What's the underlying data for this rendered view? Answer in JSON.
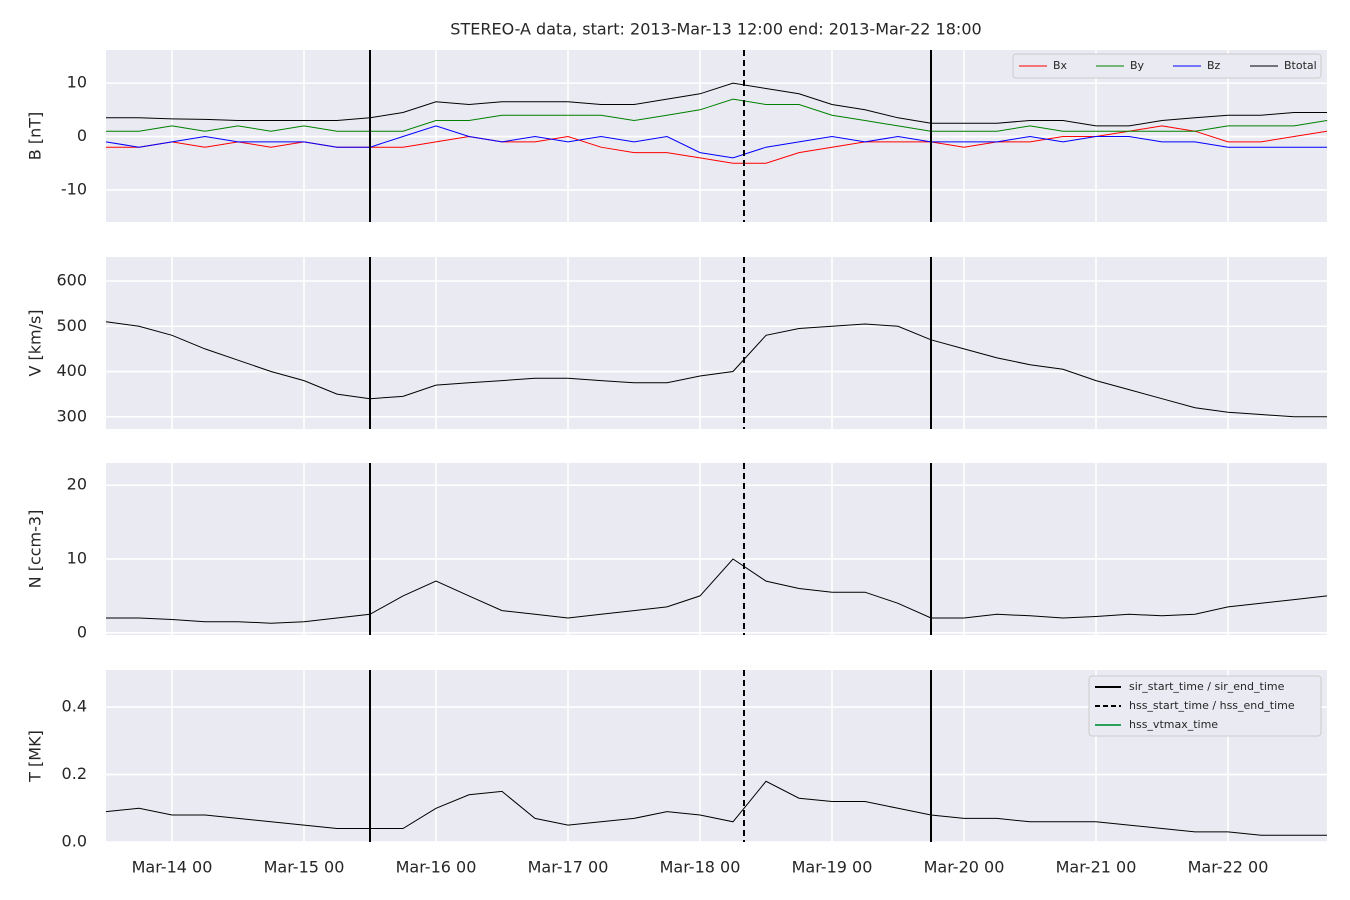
{
  "title": "STEREO-A data, start: 2013-Mar-13 12:00  end: 2013-Mar-22 18:00",
  "x": [
    "Mar-13 12",
    "Mar-13 18",
    "Mar-14 00",
    "Mar-14 06",
    "Mar-14 12",
    "Mar-14 18",
    "Mar-15 00",
    "Mar-15 06",
    "Mar-15 12",
    "Mar-15 18",
    "Mar-16 00",
    "Mar-16 06",
    "Mar-16 12",
    "Mar-16 18",
    "Mar-17 00",
    "Mar-17 06",
    "Mar-17 12",
    "Mar-17 18",
    "Mar-18 00",
    "Mar-18 06",
    "Mar-18 12",
    "Mar-18 18",
    "Mar-19 00",
    "Mar-19 06",
    "Mar-19 12",
    "Mar-19 18",
    "Mar-20 00",
    "Mar-20 06",
    "Mar-20 12",
    "Mar-20 18",
    "Mar-21 00",
    "Mar-21 06",
    "Mar-21 12",
    "Mar-21 18",
    "Mar-22 00",
    "Mar-22 06",
    "Mar-22 12",
    "Mar-22 18"
  ],
  "xlim": [
    "Mar-13 12",
    "Mar-22 18"
  ],
  "xticks": [
    "Mar-14 00",
    "Mar-15 00",
    "Mar-16 00",
    "Mar-17 00",
    "Mar-18 00",
    "Mar-19 00",
    "Mar-20 00",
    "Mar-21 00",
    "Mar-22 00"
  ],
  "markers": [
    {
      "name": "sir_start_time / sir_end_time",
      "x": [
        "Mar-15 12",
        "Mar-19 18"
      ],
      "style": "solid",
      "color": "#000000"
    },
    {
      "name": "hss_start_time / hss_end_time",
      "x": [
        "Mar-18 08"
      ],
      "style": "dashed",
      "color": "#000000"
    },
    {
      "name": "hss_vtmax_time",
      "x": [],
      "style": "solid",
      "color": "#2ca05a"
    }
  ],
  "chart_data": [
    {
      "type": "line",
      "ylabel": "B [nT]",
      "ylim": [
        -16,
        16.2
      ],
      "yticks": [
        -10,
        0,
        10
      ],
      "grid": true,
      "legend": "upper right",
      "series": [
        {
          "name": "Bx",
          "color": "#ff0000",
          "values": [
            -2,
            -2,
            -1,
            -2,
            -1,
            -2,
            -1,
            -2,
            -2,
            -2,
            -1,
            0,
            -1,
            -1,
            0,
            -2,
            -3,
            -3,
            -4,
            -5,
            -5,
            -3,
            -2,
            -1,
            -1,
            -1,
            -2,
            -1,
            -1,
            0,
            0,
            1,
            2,
            1,
            -1,
            -1,
            0,
            1
          ]
        },
        {
          "name": "By",
          "color": "#008000",
          "values": [
            1,
            1,
            2,
            1,
            2,
            1,
            2,
            1,
            1,
            1,
            3,
            3,
            4,
            4,
            4,
            4,
            3,
            4,
            5,
            7,
            6,
            6,
            4,
            3,
            2,
            1,
            1,
            1,
            2,
            1,
            1,
            1,
            1,
            1,
            2,
            2,
            2,
            3
          ]
        },
        {
          "name": "Bz",
          "color": "#0000ff",
          "values": [
            -1,
            -2,
            -1,
            0,
            -1,
            -1,
            -1,
            -2,
            -2,
            0,
            2,
            0,
            -1,
            0,
            -1,
            0,
            -1,
            0,
            -3,
            -4,
            -2,
            -1,
            0,
            -1,
            0,
            -1,
            -1,
            -1,
            0,
            -1,
            0,
            0,
            -1,
            -1,
            -2,
            -2,
            -2,
            -2
          ]
        },
        {
          "name": "Btotal",
          "color": "#000000",
          "values": [
            3.5,
            3.5,
            3.3,
            3.2,
            3,
            3,
            3,
            3,
            3.5,
            4.5,
            6.5,
            6,
            6.5,
            6.5,
            6.5,
            6,
            6,
            7,
            8,
            10,
            9,
            8,
            6,
            5,
            3.5,
            2.5,
            2.5,
            2.5,
            3,
            3,
            2,
            2,
            3,
            3.5,
            4,
            4,
            4.5,
            4.5
          ]
        }
      ]
    },
    {
      "type": "line",
      "ylabel": "V [km/s]",
      "ylim": [
        273,
        653
      ],
      "yticks": [
        300,
        400,
        500,
        600
      ],
      "grid": true,
      "series": [
        {
          "color": "#000000",
          "values": [
            510,
            500,
            480,
            450,
            425,
            400,
            380,
            350,
            340,
            345,
            370,
            375,
            380,
            385,
            385,
            380,
            375,
            375,
            390,
            400,
            480,
            495,
            500,
            505,
            500,
            470,
            450,
            430,
            415,
            405,
            380,
            360,
            340,
            320,
            310,
            305,
            300,
            300
          ]
        }
      ]
    },
    {
      "type": "line",
      "ylabel": "N [ccm-3]",
      "ylim": [
        -0.3,
        23
      ],
      "yticks": [
        0,
        10,
        20
      ],
      "grid": true,
      "series": [
        {
          "color": "#000000",
          "values": [
            2,
            2,
            1.8,
            1.5,
            1.5,
            1.3,
            1.5,
            2,
            2.5,
            5,
            7,
            5,
            3,
            2.5,
            2,
            2.5,
            3,
            3.5,
            5,
            10,
            7,
            6,
            5.5,
            5.5,
            4,
            2,
            2,
            2.5,
            2.3,
            2,
            2.2,
            2.5,
            2.3,
            2.5,
            3.5,
            4,
            4.5,
            5
          ]
        }
      ]
    },
    {
      "type": "line",
      "ylabel": "T [MK]",
      "ylim": [
        0,
        0.51
      ],
      "yticks": [
        {
          "value": 0,
          "label": "0.0"
        },
        0.2,
        0.4
      ],
      "grid": true,
      "legend": "upper right",
      "series": [
        {
          "color": "#000000",
          "values": [
            0.09,
            0.1,
            0.08,
            0.08,
            0.07,
            0.06,
            0.05,
            0.04,
            0.04,
            0.04,
            0.1,
            0.14,
            0.15,
            0.07,
            0.05,
            0.06,
            0.07,
            0.09,
            0.08,
            0.06,
            0.18,
            0.13,
            0.12,
            0.12,
            0.1,
            0.08,
            0.07,
            0.07,
            0.06,
            0.06,
            0.06,
            0.05,
            0.04,
            0.03,
            0.03,
            0.02,
            0.02,
            0.02
          ]
        }
      ]
    }
  ]
}
